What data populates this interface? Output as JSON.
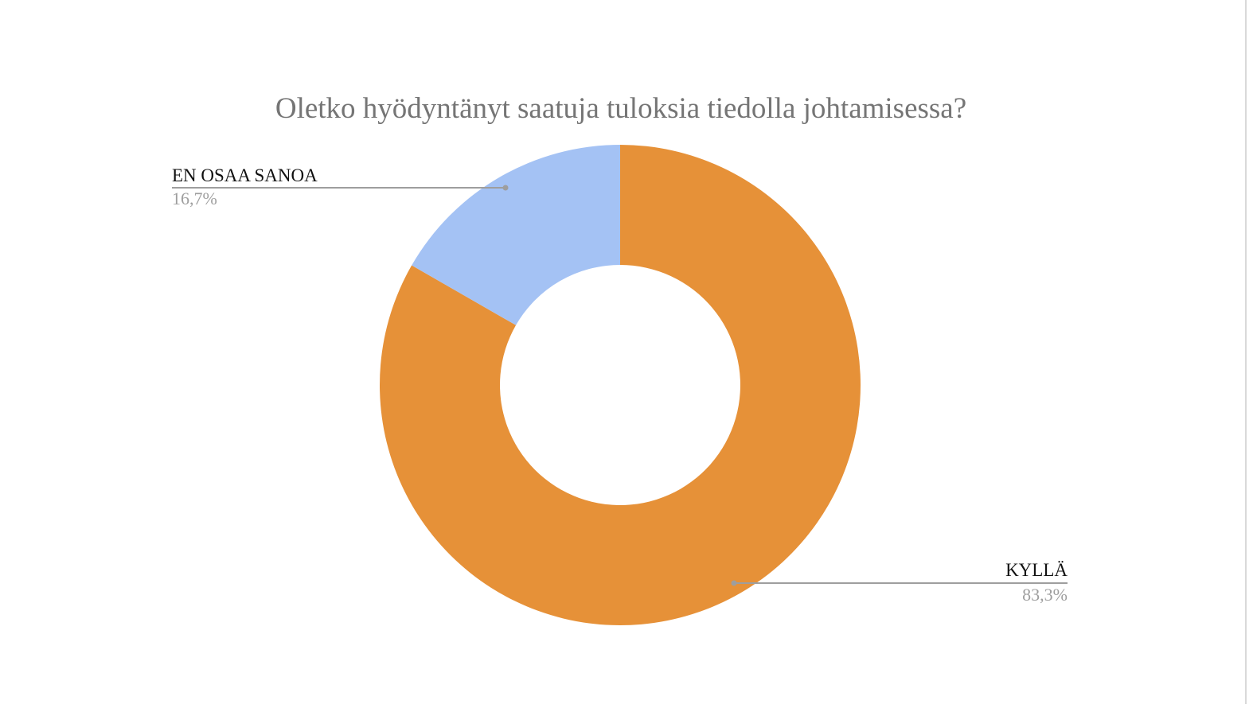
{
  "chart_data": {
    "type": "pie",
    "variant": "donut",
    "title": "Oletko hyödyntänyt saatuja tuloksia tiedolla johtamisessa?",
    "slices": [
      {
        "label": "KYLLÄ",
        "value": 83.3,
        "display": "83,3%",
        "color": "#E69138"
      },
      {
        "label": "EN OSAA SANOA",
        "value": 16.7,
        "display": "16,7%",
        "color": "#A4C2F4"
      }
    ],
    "legend": "none",
    "labels": "outside-with-leader-lines"
  }
}
